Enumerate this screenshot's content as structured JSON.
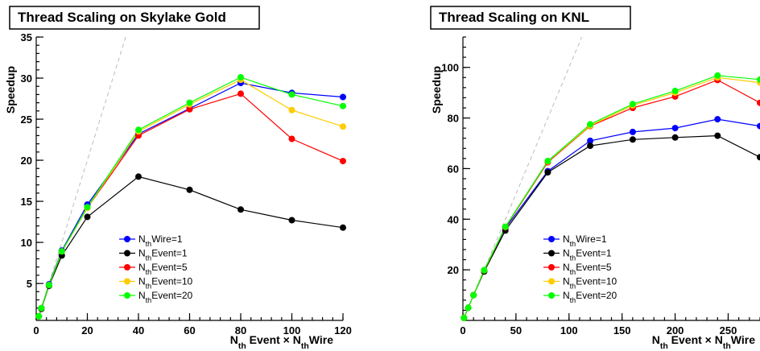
{
  "chart_data": [
    {
      "type": "line",
      "title": "Thread Scaling on Skylake Gold",
      "xlabel": {
        "pre": "N",
        "sub": "th",
        "mid": "Event × N",
        "sub2": "th",
        "post": "Wire"
      },
      "ylabel": "Speedup",
      "xlim": [
        0,
        120
      ],
      "ylim": [
        0.5,
        35
      ],
      "xticks": [
        0,
        20,
        40,
        60,
        80,
        100,
        120
      ],
      "yticks": [
        5,
        10,
        15,
        20,
        25,
        30,
        35
      ],
      "reference_line": {
        "from": [
          0,
          0
        ],
        "to": [
          35,
          35
        ]
      },
      "legend": {
        "placement": "bottom-center"
      },
      "series": [
        {
          "name": {
            "pre": "N",
            "sub": "th",
            "post": "Wire=1"
          },
          "color": "#0000ff",
          "x": [
            1,
            2,
            5,
            10,
            20,
            40,
            60,
            80,
            100,
            120
          ],
          "y": [
            1.0,
            2.0,
            4.9,
            9.0,
            14.6,
            23.2,
            26.3,
            29.4,
            28.2,
            27.7
          ]
        },
        {
          "name": {
            "pre": "N",
            "sub": "th",
            "post": "Event=1"
          },
          "color": "#000000",
          "x": [
            1,
            2,
            5,
            10,
            20,
            40,
            60,
            80,
            100,
            120
          ],
          "y": [
            1.0,
            1.9,
            4.7,
            8.4,
            13.1,
            18.0,
            16.4,
            14.0,
            12.7,
            11.8
          ]
        },
        {
          "name": {
            "pre": "N",
            "sub": "th",
            "post": "Event=5"
          },
          "color": "#ff0000",
          "x": [
            1,
            2,
            5,
            10,
            20,
            40,
            60,
            80,
            100,
            120
          ],
          "y": [
            1.0,
            2.0,
            4.8,
            8.9,
            14.2,
            23.0,
            26.2,
            28.1,
            22.6,
            19.9
          ]
        },
        {
          "name": {
            "pre": "N",
            "sub": "th",
            "post": "Event=10"
          },
          "color": "#ffcc00",
          "x": [
            1,
            2,
            5,
            10,
            20,
            40,
            60,
            80,
            100,
            120
          ],
          "y": [
            1.0,
            2.0,
            4.8,
            8.9,
            14.2,
            23.5,
            26.8,
            29.8,
            26.1,
            24.1
          ]
        },
        {
          "name": {
            "pre": "N",
            "sub": "th",
            "post": "Event=20"
          },
          "color": "#00ff00",
          "x": [
            1,
            2,
            5,
            10,
            20,
            40,
            60,
            80,
            100,
            120
          ],
          "y": [
            1.0,
            2.0,
            4.8,
            8.9,
            14.3,
            23.7,
            27.0,
            30.1,
            28.0,
            26.6
          ]
        }
      ]
    },
    {
      "type": "line",
      "title": "Thread Scaling on KNL",
      "xlabel": {
        "pre": "N",
        "sub": "th",
        "mid": "Event × N",
        "sub2": "th",
        "post": "Wire"
      },
      "ylabel": "Speedup",
      "xlim": [
        0,
        280
      ],
      "ylim": [
        0,
        112
      ],
      "xticks": [
        0,
        50,
        100,
        150,
        200,
        250
      ],
      "yticks": [
        20,
        40,
        60,
        80,
        100
      ],
      "reference_line": {
        "from": [
          0,
          0
        ],
        "to": [
          112,
          112
        ]
      },
      "legend": {
        "placement": "bottom-center"
      },
      "series": [
        {
          "name": {
            "pre": "N",
            "sub": "th",
            "post": "Wire=1"
          },
          "color": "#0000ff",
          "x": [
            1,
            5,
            10,
            20,
            40,
            80,
            120,
            160,
            200,
            240,
            280
          ],
          "y": [
            1.0,
            5.0,
            10.0,
            19.5,
            36.5,
            59.0,
            71.0,
            74.5,
            76.0,
            79.5,
            76.8
          ]
        },
        {
          "name": {
            "pre": "N",
            "sub": "th",
            "post": "Event=1"
          },
          "color": "#000000",
          "x": [
            1,
            5,
            10,
            20,
            40,
            80,
            120,
            160,
            200,
            240,
            280
          ],
          "y": [
            1.0,
            5.0,
            10.0,
            19.3,
            35.5,
            58.5,
            69.0,
            71.5,
            72.3,
            73.0,
            64.5
          ]
        },
        {
          "name": {
            "pre": "N",
            "sub": "th",
            "post": "Event=5"
          },
          "color": "#ff0000",
          "x": [
            1,
            5,
            10,
            20,
            40,
            80,
            120,
            160,
            200,
            240,
            280
          ],
          "y": [
            1.0,
            5.0,
            10.0,
            19.8,
            36.8,
            62.5,
            76.8,
            84.0,
            88.5,
            95.0,
            86.0
          ]
        },
        {
          "name": {
            "pre": "N",
            "sub": "th",
            "post": "Event=10"
          },
          "color": "#ffcc00",
          "x": [
            1,
            5,
            10,
            20,
            40,
            80,
            120,
            160,
            200,
            240,
            280
          ],
          "y": [
            1.0,
            5.0,
            10.0,
            19.8,
            37.0,
            62.8,
            77.0,
            85.0,
            90.0,
            96.0,
            94.0
          ]
        },
        {
          "name": {
            "pre": "N",
            "sub": "th",
            "post": "Event=20"
          },
          "color": "#00ff00",
          "x": [
            1,
            5,
            10,
            20,
            40,
            80,
            120,
            160,
            200,
            240,
            280
          ],
          "y": [
            1.0,
            5.0,
            10.0,
            19.9,
            37.0,
            63.0,
            77.5,
            85.5,
            90.7,
            96.8,
            95.2
          ]
        }
      ]
    }
  ]
}
